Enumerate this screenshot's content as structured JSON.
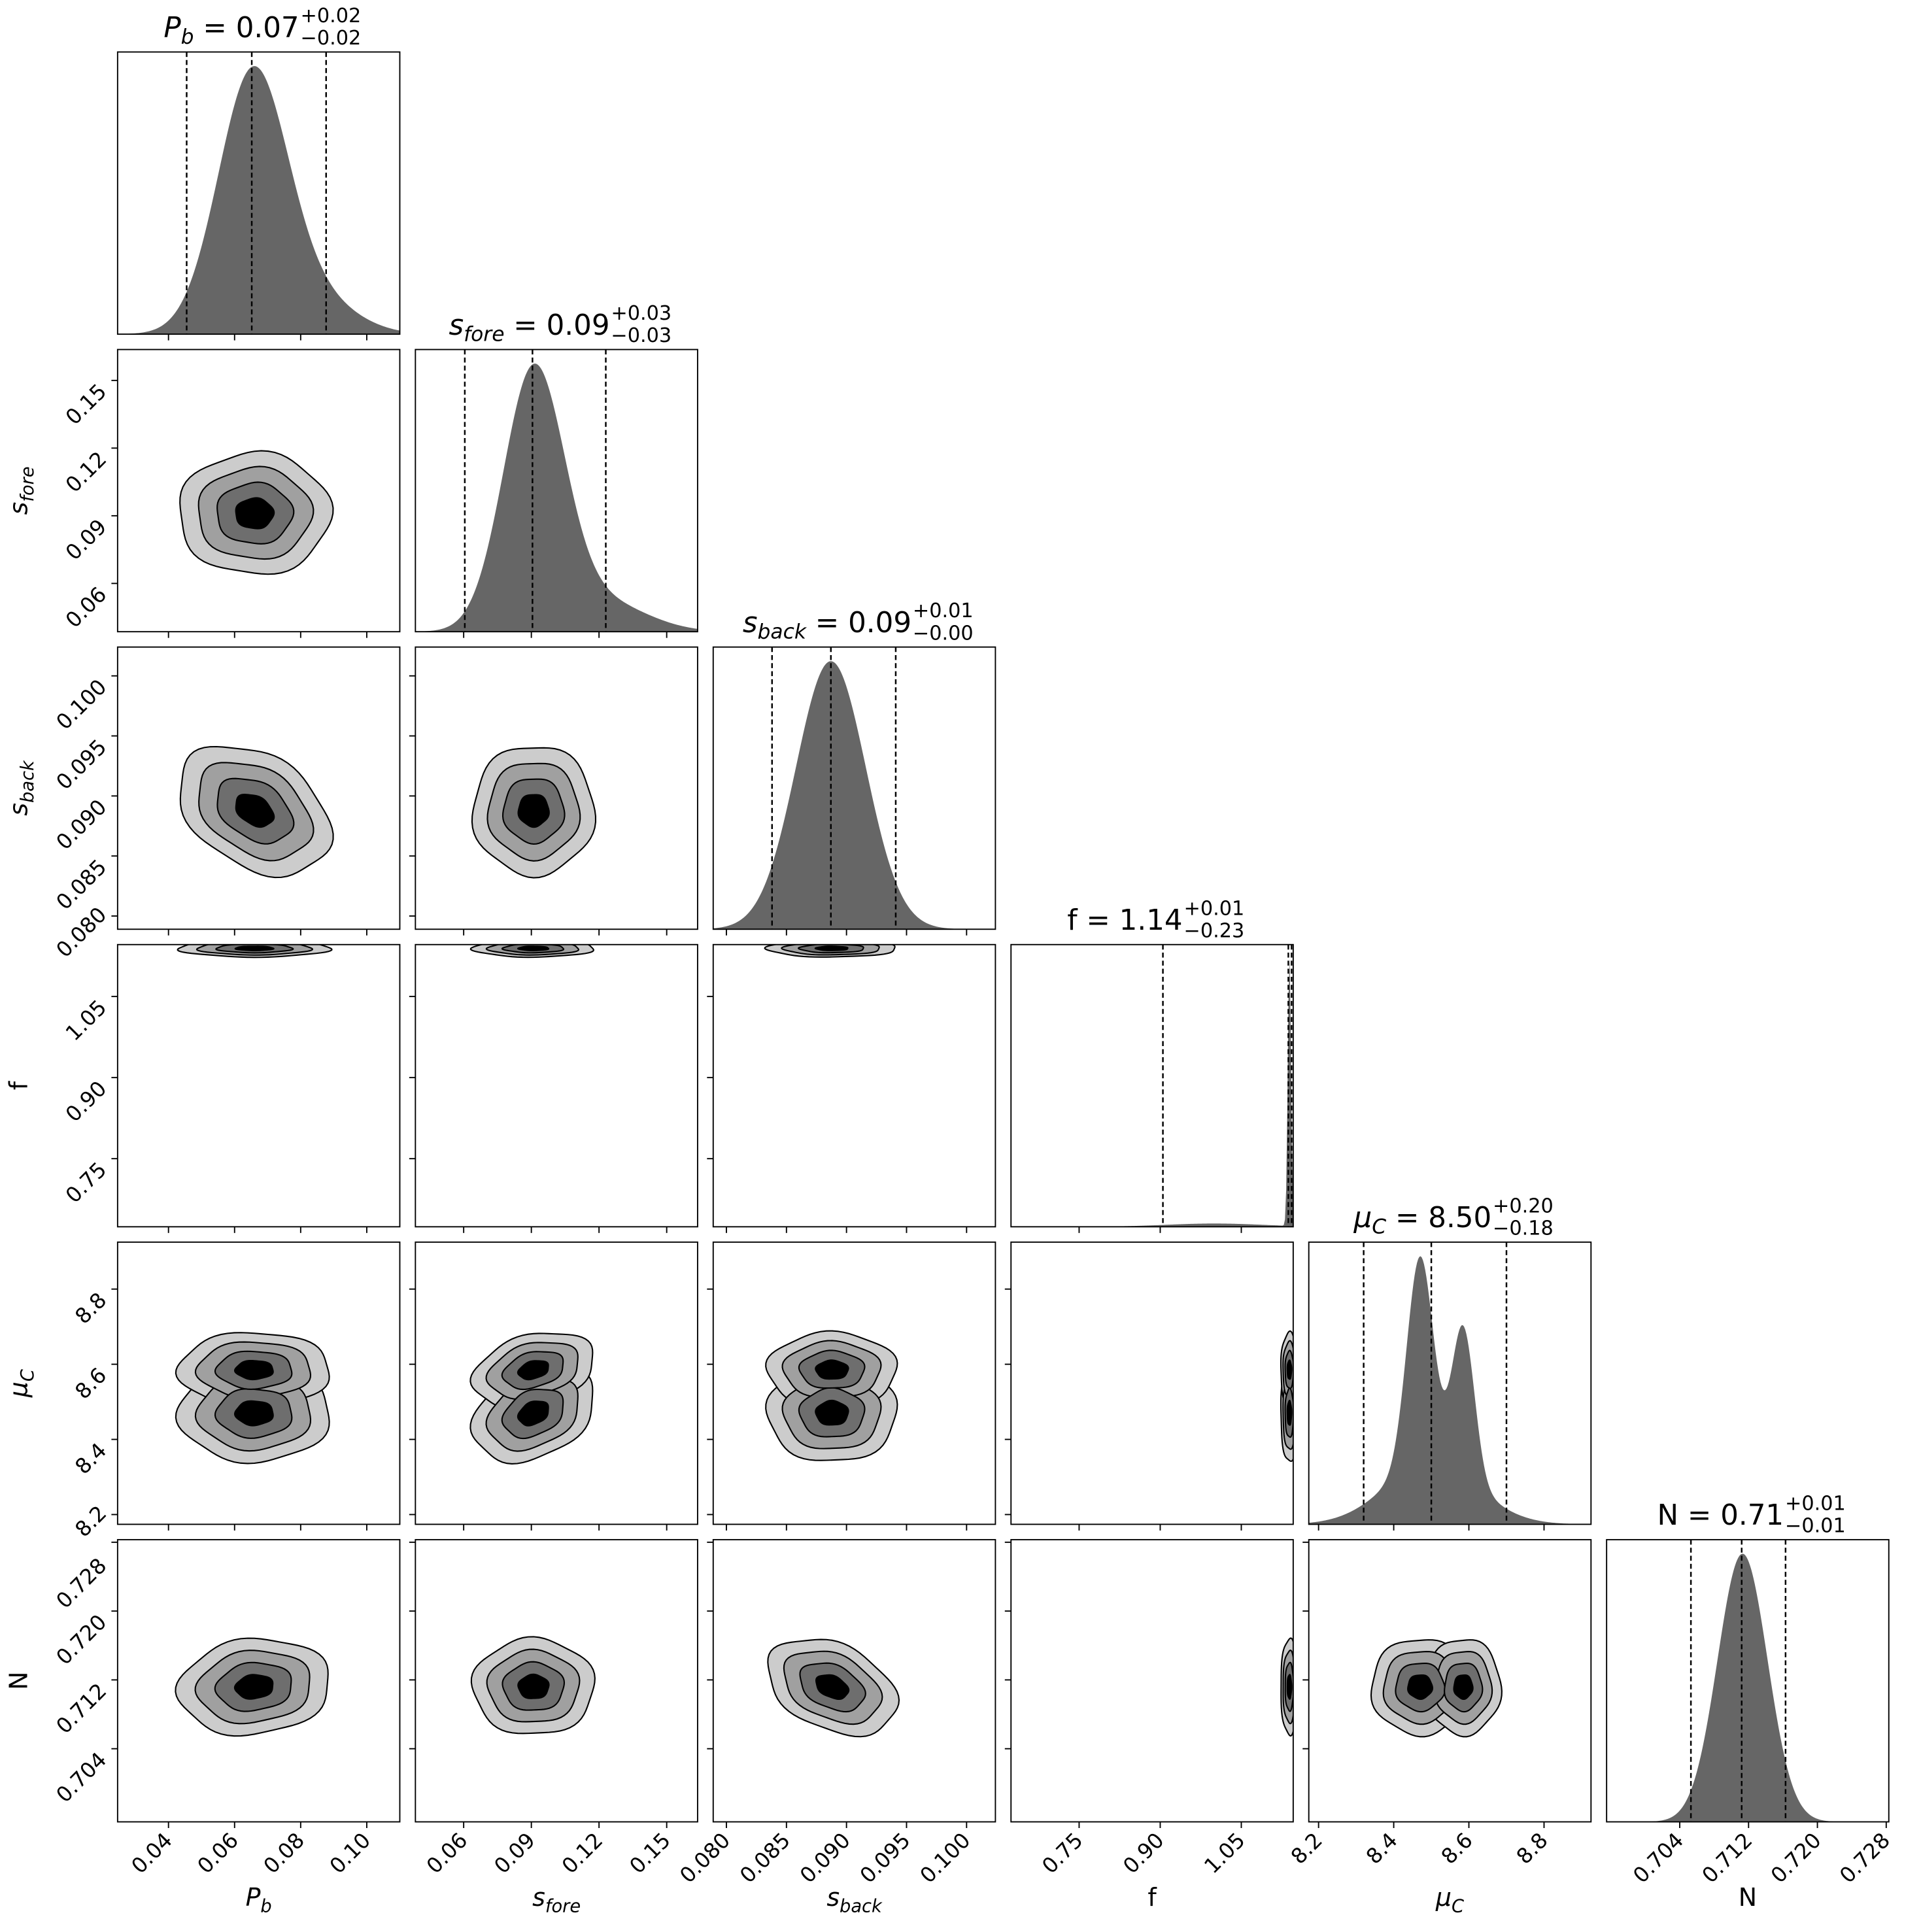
{
  "chart_data": {
    "type": "corner",
    "contour_levels_sigma": [
      2,
      1.5,
      1,
      0.5
    ],
    "colors": {
      "hist": "#666666",
      "levels": [
        "#cccccc",
        "#a0a0a0",
        "#6e6e6e",
        "#000000"
      ],
      "line": "#000000"
    },
    "parameters": [
      {
        "key": "Pb",
        "label": {
          "main": "P",
          "sub": "b",
          "italic": true
        },
        "title": {
          "value": "0.07",
          "plus": "+0.02",
          "minus": "−0.02"
        },
        "range": [
          0.0246,
          0.11
        ],
        "ticks": [
          0.04,
          0.06,
          0.08,
          0.1
        ],
        "tick_labels": [
          "0.04",
          "0.06",
          "0.08",
          "0.10"
        ],
        "quantiles": [
          0.0455,
          0.0652,
          0.0877
        ],
        "hist_components": [
          [
            0.0655,
            0.0105,
            1.0
          ],
          [
            0.085,
            0.012,
            0.12
          ]
        ],
        "contour_components": [
          [
            0.066,
            0.0115,
            1.0
          ]
        ]
      },
      {
        "key": "s_fore",
        "label": {
          "main": "s",
          "sub": "fore",
          "italic": true
        },
        "title": {
          "value": "0.09",
          "plus": "+0.03",
          "minus": "−0.03"
        },
        "range": [
          0.0386,
          0.1637
        ],
        "ticks": [
          0.06,
          0.09,
          0.12,
          0.15
        ],
        "tick_labels": [
          "0.06",
          "0.09",
          "0.12",
          "0.15"
        ],
        "quantiles": [
          0.0605,
          0.0905,
          0.123
        ],
        "hist_components": [
          [
            0.091,
            0.0135,
            1.0
          ],
          [
            0.12,
            0.02,
            0.12
          ]
        ],
        "contour_components": [
          [
            0.091,
            0.0135,
            1.0
          ]
        ]
      },
      {
        "key": "s_back",
        "label": {
          "main": "s",
          "sub": "back",
          "italic": true
        },
        "title": {
          "value": "0.09",
          "plus": "+0.01",
          "minus": "−0.00"
        },
        "range": [
          0.0789,
          0.1024
        ],
        "ticks": [
          0.08,
          0.085,
          0.09,
          0.095,
          0.1
        ],
        "tick_labels": [
          "0.080",
          "0.085",
          "0.090",
          "0.095",
          "0.100"
        ],
        "quantiles": [
          0.0838,
          0.0887,
          0.0941
        ],
        "hist_components": [
          [
            0.0887,
            0.0029,
            1.0
          ]
        ],
        "contour_components": [
          [
            0.0888,
            0.0027,
            1.0
          ]
        ]
      },
      {
        "key": "f",
        "label": {
          "main": "f",
          "sub": "",
          "italic": false
        },
        "title": {
          "value": "1.14",
          "plus": "+0.01",
          "minus": "−0.23"
        },
        "range": [
          0.624,
          1.146
        ],
        "ticks": [
          0.75,
          0.9,
          1.05
        ],
        "tick_labels": [
          "0.75",
          "0.90",
          "1.05"
        ],
        "quantiles": [
          0.905,
          1.137,
          1.143
        ],
        "hist_components": [
          [
            1.139,
            0.003,
            1.0
          ],
          [
            1.0,
            0.09,
            0.012
          ]
        ],
        "contour_components": [
          [
            1.139,
            0.008,
            1.0
          ]
        ]
      },
      {
        "key": "mu_C",
        "label": {
          "main": "μ",
          "sub": "C",
          "italic": true
        },
        "title": {
          "value": "8.50",
          "plus": "+0.20",
          "minus": "−0.18"
        },
        "range": [
          8.174,
          8.925
        ],
        "ticks": [
          8.2,
          8.4,
          8.6,
          8.8
        ],
        "tick_labels": [
          "8.2",
          "8.4",
          "8.6",
          "8.8"
        ],
        "quantiles": [
          8.32,
          8.5,
          8.7
        ],
        "hist_components": [
          [
            8.47,
            0.035,
            1.0
          ],
          [
            8.585,
            0.03,
            0.72
          ],
          [
            8.5,
            0.12,
            0.3
          ]
        ],
        "contour_components": [
          [
            8.47,
            0.065,
            1.0
          ],
          [
            8.585,
            0.05,
            0.8
          ]
        ]
      },
      {
        "key": "N",
        "label": {
          "main": "N",
          "sub": "",
          "italic": false
        },
        "title": {
          "value": "0.71",
          "plus": "+0.01",
          "minus": "−0.01"
        },
        "range": [
          0.6955,
          0.7283
        ],
        "ticks": [
          0.704,
          0.712,
          0.72,
          0.728
        ],
        "tick_labels": [
          "0.704",
          "0.712",
          "0.720",
          "0.728"
        ],
        "quantiles": [
          0.7053,
          0.7112,
          0.7163
        ],
        "hist_components": [
          [
            0.7113,
            0.0029,
            1.0
          ]
        ],
        "contour_components": [
          [
            0.7112,
            0.0028,
            1.0
          ]
        ]
      }
    ],
    "correlations": {
      "0-2": -0.35,
      "1-4": 0.3,
      "2-5": -0.35,
      "0-5": 0.1
    }
  }
}
